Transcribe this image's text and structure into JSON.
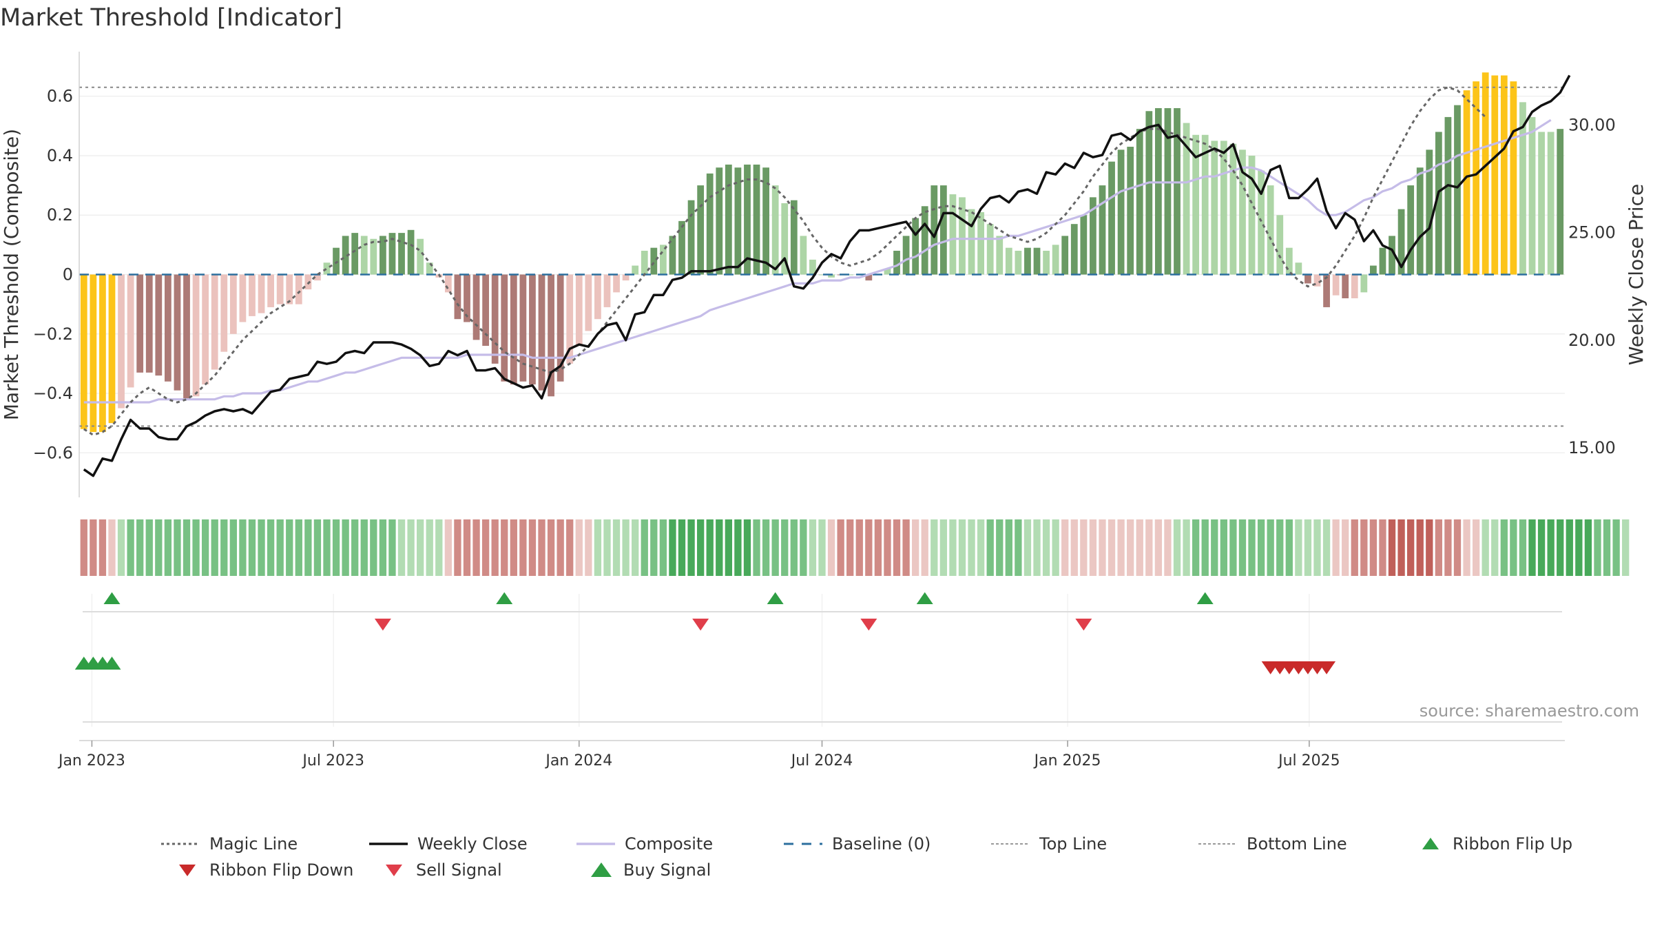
{
  "title": "Market Threshold [Indicator]",
  "source": "source: sharemaestro.com",
  "colors": {
    "bull_strong": "#6a9a64",
    "bull_weak": "#add5a6",
    "bear_strong": "#ad7a76",
    "bear_weak": "#ebc2bd",
    "extreme": "#fcc419",
    "weekly_close": "#111111",
    "composite_line": "#c5bce8",
    "baseline": "#2c6f9e",
    "magic_line": "#666666",
    "buy": "#2f9e44",
    "sell": "#e03e4a",
    "ribbon_flip_up": "#2f9e44",
    "ribbon_flip_down": "#c92a2a"
  },
  "legend": [
    {
      "label": "Magic Line",
      "icon": "dotted-line"
    },
    {
      "label": "Weekly Close",
      "icon": "solid-line"
    },
    {
      "label": "Composite",
      "icon": "composite-line"
    },
    {
      "label": "Baseline (0)",
      "icon": "dashed-line"
    },
    {
      "label": "Top Line",
      "icon": "fine-dotted-line"
    },
    {
      "label": "Bottom Line",
      "icon": "fine-dotted-line"
    },
    {
      "label": "Ribbon Flip Up",
      "icon": "triangle-up-icon"
    },
    {
      "label": "Ribbon Flip Down",
      "icon": "triangle-down-icon"
    },
    {
      "label": "Sell Signal",
      "icon": "triangle-down-icon"
    },
    {
      "label": "Buy Signal",
      "icon": "triangle-up-icon"
    }
  ],
  "chart_data": {
    "type": "bar",
    "start_week": "2022-12-26",
    "x_ticks": [
      "Jan 2023",
      "Jul 2023",
      "Jan 2024",
      "Jul 2024",
      "Jan 2025",
      "Jul 2025"
    ],
    "y_left": {
      "label": "Market Threshold (Composite)",
      "range": [
        -0.75,
        0.75
      ],
      "ticks": [
        -0.6,
        -0.4,
        -0.2,
        0,
        0.2,
        0.4,
        0.6
      ],
      "tick_labels": [
        "−0.6",
        "−0.4",
        "−0.2",
        "0",
        "0.2",
        "0.4",
        "0.6"
      ]
    },
    "y_right": {
      "label": "Weekly Close Price",
      "range": [
        12.7,
        33.4
      ],
      "ticks": [
        15,
        20,
        25,
        30
      ],
      "tick_labels": [
        "15.00",
        "20.00",
        "25.00",
        "30.00"
      ]
    },
    "top_line": 0.63,
    "bottom_line": -0.51,
    "baseline": 0,
    "grid": true,
    "legend_position": "bottom",
    "composite_bars": [
      -0.52,
      -0.53,
      -0.53,
      -0.5,
      -0.45,
      -0.38,
      -0.33,
      -0.33,
      -0.34,
      -0.36,
      -0.39,
      -0.42,
      -0.41,
      -0.37,
      -0.32,
      -0.26,
      -0.2,
      -0.16,
      -0.14,
      -0.13,
      -0.11,
      -0.1,
      -0.1,
      -0.1,
      -0.05,
      -0.02,
      0.04,
      0.09,
      0.13,
      0.14,
      0.13,
      0.12,
      0.13,
      0.14,
      0.14,
      0.15,
      0.12,
      0.04,
      -0.01,
      -0.06,
      -0.15,
      -0.16,
      -0.22,
      -0.24,
      -0.3,
      -0.36,
      -0.37,
      -0.36,
      -0.37,
      -0.39,
      -0.41,
      -0.36,
      -0.3,
      -0.24,
      -0.19,
      -0.15,
      -0.11,
      -0.06,
      -0.02,
      0.03,
      0.08,
      0.09,
      0.1,
      0.13,
      0.18,
      0.25,
      0.3,
      0.34,
      0.36,
      0.37,
      0.36,
      0.37,
      0.37,
      0.36,
      0.3,
      0.24,
      0.25,
      0.13,
      0.05,
      0.0,
      -0.01,
      0.0,
      0.0,
      0.0,
      -0.02,
      0.0,
      0.02,
      0.08,
      0.13,
      0.19,
      0.23,
      0.3,
      0.3,
      0.27,
      0.26,
      0.22,
      0.21,
      0.17,
      0.13,
      0.09,
      0.08,
      0.09,
      0.09,
      0.08,
      0.1,
      0.13,
      0.17,
      0.2,
      0.26,
      0.3,
      0.38,
      0.42,
      0.43,
      0.49,
      0.55,
      0.56,
      0.56,
      0.56,
      0.51,
      0.47,
      0.47,
      0.45,
      0.45,
      0.44,
      0.42,
      0.4,
      0.35,
      0.3,
      0.2,
      0.09,
      0.04,
      -0.03,
      -0.04,
      -0.11,
      -0.07,
      -0.08,
      -0.08,
      -0.06,
      0.03,
      0.09,
      0.13,
      0.22,
      0.3,
      0.36,
      0.42,
      0.48,
      0.53,
      0.57,
      0.62,
      0.65,
      0.68,
      0.67,
      0.67,
      0.65,
      0.58,
      0.53,
      0.48,
      0.48,
      0.49
    ],
    "bar_colors": [
      "extreme",
      "extreme",
      "extreme",
      "extreme",
      "bear_weak",
      "bear_weak",
      "bear_strong",
      "bear_strong",
      "bear_strong",
      "bear_strong",
      "bear_strong",
      "bear_strong",
      "bear_weak",
      "bear_weak",
      "bear_weak",
      "bear_weak",
      "bear_weak",
      "bear_weak",
      "bear_weak",
      "bear_weak",
      "bear_weak",
      "bear_weak",
      "bear_weak",
      "bear_weak",
      "bear_weak",
      "bear_weak",
      "bull_weak",
      "bull_strong",
      "bull_strong",
      "bull_strong",
      "bull_weak",
      "bull_weak",
      "bull_strong",
      "bull_strong",
      "bull_strong",
      "bull_strong",
      "bull_weak",
      "bull_weak",
      "bear_weak",
      "bear_weak",
      "bear_strong",
      "bear_strong",
      "bear_strong",
      "bear_strong",
      "bear_strong",
      "bear_strong",
      "bear_strong",
      "bear_strong",
      "bear_strong",
      "bear_strong",
      "bear_strong",
      "bear_strong",
      "bear_weak",
      "bear_weak",
      "bear_weak",
      "bear_weak",
      "bear_weak",
      "bear_weak",
      "bear_weak",
      "bull_weak",
      "bull_weak",
      "bull_strong",
      "bull_weak",
      "bull_strong",
      "bull_strong",
      "bull_strong",
      "bull_strong",
      "bull_strong",
      "bull_strong",
      "bull_strong",
      "bull_strong",
      "bull_strong",
      "bull_strong",
      "bull_strong",
      "bull_weak",
      "bull_weak",
      "bull_strong",
      "bull_weak",
      "bull_weak",
      "bull_weak",
      "bull_weak",
      "bear_strong",
      "bull_weak",
      "bull_weak",
      "bear_strong",
      "bull_weak",
      "bull_weak",
      "bull_strong",
      "bull_strong",
      "bull_strong",
      "bull_strong",
      "bull_strong",
      "bull_strong",
      "bull_weak",
      "bull_weak",
      "bull_weak",
      "bull_weak",
      "bull_weak",
      "bull_weak",
      "bull_weak",
      "bull_weak",
      "bull_strong",
      "bull_strong",
      "bull_weak",
      "bull_weak",
      "bull_strong",
      "bull_strong",
      "bull_strong",
      "bull_strong",
      "bull_strong",
      "bull_strong",
      "bull_strong",
      "bull_strong",
      "bull_strong",
      "bull_strong",
      "bull_strong",
      "bull_strong",
      "bull_strong",
      "bull_weak",
      "bull_weak",
      "bull_weak",
      "bull_weak",
      "bull_weak",
      "bull_weak",
      "bull_weak",
      "bull_weak",
      "bull_weak",
      "bull_weak",
      "bull_weak",
      "bull_weak",
      "bull_weak",
      "bear_strong",
      "bear_weak",
      "bear_strong",
      "bear_weak",
      "bear_strong",
      "bear_weak",
      "bull_weak",
      "bull_strong",
      "bull_strong",
      "bull_strong",
      "bull_strong",
      "bull_strong",
      "bull_strong",
      "bull_strong",
      "bull_strong",
      "bull_strong",
      "bull_strong",
      "extreme",
      "extreme",
      "extreme",
      "extreme",
      "extreme",
      "extreme",
      "bull_weak",
      "bull_weak",
      "bull_weak",
      "bull_weak",
      "bull_strong"
    ],
    "magic_line": [
      -0.52,
      -0.54,
      -0.53,
      -0.51,
      -0.47,
      -0.43,
      -0.4,
      -0.38,
      -0.4,
      -0.42,
      -0.43,
      -0.42,
      -0.4,
      -0.37,
      -0.34,
      -0.3,
      -0.26,
      -0.22,
      -0.19,
      -0.16,
      -0.13,
      -0.11,
      -0.09,
      -0.06,
      -0.03,
      0.0,
      0.02,
      0.04,
      0.06,
      0.08,
      0.1,
      0.11,
      0.11,
      0.12,
      0.11,
      0.1,
      0.08,
      0.04,
      0.0,
      -0.05,
      -0.1,
      -0.14,
      -0.17,
      -0.2,
      -0.23,
      -0.26,
      -0.28,
      -0.3,
      -0.31,
      -0.32,
      -0.33,
      -0.32,
      -0.3,
      -0.27,
      -0.24,
      -0.2,
      -0.16,
      -0.12,
      -0.08,
      -0.04,
      0.0,
      0.04,
      0.08,
      0.12,
      0.16,
      0.2,
      0.23,
      0.26,
      0.28,
      0.3,
      0.31,
      0.32,
      0.32,
      0.31,
      0.29,
      0.26,
      0.22,
      0.18,
      0.13,
      0.09,
      0.06,
      0.04,
      0.03,
      0.04,
      0.05,
      0.07,
      0.1,
      0.13,
      0.16,
      0.19,
      0.21,
      0.22,
      0.23,
      0.23,
      0.22,
      0.21,
      0.19,
      0.17,
      0.15,
      0.13,
      0.12,
      0.11,
      0.12,
      0.14,
      0.17,
      0.2,
      0.24,
      0.28,
      0.33,
      0.37,
      0.41,
      0.44,
      0.46,
      0.48,
      0.49,
      0.49,
      0.48,
      0.47,
      0.46,
      0.45,
      0.44,
      0.42,
      0.39,
      0.35,
      0.3,
      0.24,
      0.18,
      0.12,
      0.06,
      0.01,
      -0.02,
      -0.04,
      -0.03,
      -0.01,
      0.03,
      0.08,
      0.13,
      0.19,
      0.26,
      0.32,
      0.38,
      0.44,
      0.5,
      0.55,
      0.59,
      0.62,
      0.63,
      0.62,
      0.59,
      0.56,
      0.53
    ],
    "composite_line": [
      -0.43,
      -0.43,
      -0.43,
      -0.43,
      -0.43,
      -0.43,
      -0.43,
      -0.43,
      -0.42,
      -0.42,
      -0.42,
      -0.42,
      -0.42,
      -0.42,
      -0.42,
      -0.41,
      -0.41,
      -0.4,
      -0.4,
      -0.4,
      -0.39,
      -0.39,
      -0.38,
      -0.37,
      -0.36,
      -0.36,
      -0.35,
      -0.34,
      -0.33,
      -0.33,
      -0.32,
      -0.31,
      -0.3,
      -0.29,
      -0.28,
      -0.28,
      -0.28,
      -0.28,
      -0.28,
      -0.28,
      -0.28,
      -0.27,
      -0.27,
      -0.27,
      -0.27,
      -0.27,
      -0.27,
      -0.27,
      -0.28,
      -0.28,
      -0.28,
      -0.28,
      -0.28,
      -0.27,
      -0.26,
      -0.25,
      -0.24,
      -0.23,
      -0.22,
      -0.21,
      -0.2,
      -0.19,
      -0.18,
      -0.17,
      -0.16,
      -0.15,
      -0.14,
      -0.12,
      -0.11,
      -0.1,
      -0.09,
      -0.08,
      -0.07,
      -0.06,
      -0.05,
      -0.04,
      -0.03,
      -0.03,
      -0.03,
      -0.02,
      -0.02,
      -0.02,
      -0.01,
      -0.01,
      0.0,
      0.01,
      0.02,
      0.03,
      0.05,
      0.06,
      0.08,
      0.1,
      0.11,
      0.12,
      0.12,
      0.12,
      0.12,
      0.12,
      0.12,
      0.13,
      0.13,
      0.14,
      0.15,
      0.16,
      0.17,
      0.18,
      0.19,
      0.2,
      0.22,
      0.24,
      0.26,
      0.28,
      0.29,
      0.3,
      0.31,
      0.31,
      0.31,
      0.31,
      0.31,
      0.32,
      0.33,
      0.33,
      0.34,
      0.35,
      0.36,
      0.36,
      0.35,
      0.33,
      0.31,
      0.29,
      0.27,
      0.25,
      0.22,
      0.2,
      0.2,
      0.21,
      0.23,
      0.25,
      0.26,
      0.28,
      0.29,
      0.31,
      0.32,
      0.34,
      0.35,
      0.37,
      0.38,
      0.4,
      0.41,
      0.42,
      0.43,
      0.44,
      0.45,
      0.46,
      0.47,
      0.48,
      0.5,
      0.52
    ],
    "weekly_close": [
      14.0,
      13.7,
      14.5,
      14.4,
      15.4,
      16.3,
      15.9,
      15.9,
      15.5,
      15.4,
      15.4,
      16.0,
      16.2,
      16.5,
      16.7,
      16.8,
      16.7,
      16.8,
      16.6,
      17.1,
      17.6,
      17.7,
      18.2,
      18.3,
      18.4,
      19.0,
      18.9,
      19.0,
      19.4,
      19.5,
      19.4,
      19.9,
      19.9,
      19.9,
      19.8,
      19.6,
      19.3,
      18.8,
      18.9,
      19.5,
      19.3,
      19.5,
      18.6,
      18.6,
      18.7,
      18.2,
      18.0,
      17.8,
      17.9,
      17.3,
      18.5,
      18.8,
      19.6,
      19.8,
      19.7,
      20.3,
      20.7,
      20.8,
      20.0,
      21.2,
      21.3,
      22.1,
      22.1,
      22.8,
      22.9,
      23.2,
      23.2,
      23.2,
      23.3,
      23.4,
      23.4,
      23.8,
      23.7,
      23.6,
      23.3,
      23.8,
      22.5,
      22.4,
      22.9,
      23.6,
      24.0,
      23.8,
      24.6,
      25.1,
      25.1,
      25.2,
      25.3,
      25.4,
      25.5,
      24.9,
      25.4,
      24.8,
      25.9,
      25.9,
      25.6,
      25.3,
      26.1,
      26.6,
      26.7,
      26.4,
      26.9,
      27.0,
      26.8,
      27.8,
      27.7,
      28.2,
      28.0,
      28.7,
      28.5,
      28.6,
      29.5,
      29.6,
      29.3,
      29.7,
      29.9,
      30.0,
      29.4,
      29.5,
      29.0,
      28.5,
      28.7,
      28.9,
      28.7,
      29.1,
      27.8,
      27.5,
      26.8,
      27.9,
      28.1,
      26.6,
      26.6,
      27.0,
      27.5,
      26.0,
      25.2,
      25.9,
      25.6,
      24.6,
      25.1,
      24.4,
      24.2,
      23.4,
      24.2,
      24.8,
      25.2,
      26.9,
      27.2,
      27.1,
      27.6,
      27.7,
      28.1,
      28.5,
      28.9,
      29.7,
      29.9,
      30.6,
      30.9,
      31.1,
      31.5,
      32.3
    ]
  },
  "ribbon": [
    -2,
    -2,
    -2,
    -1,
    1,
    2,
    2,
    2,
    2,
    2,
    2,
    2,
    2,
    2,
    2,
    2,
    2,
    2,
    2,
    2,
    2,
    2,
    2,
    2,
    2,
    2,
    2,
    2,
    2,
    2,
    2,
    2,
    2,
    2,
    1,
    1,
    1,
    1,
    1,
    -1,
    -2,
    -2,
    -2,
    -2,
    -2,
    -2,
    -2,
    -2,
    -2,
    -2,
    -2,
    -2,
    -2,
    -1,
    -1,
    1,
    1,
    1,
    1,
    1,
    2,
    2,
    2,
    3,
    3,
    3,
    3,
    3,
    3,
    3,
    3,
    3,
    2,
    2,
    2,
    2,
    2,
    2,
    1,
    1,
    -1,
    -2,
    -2,
    -2,
    -2,
    -2,
    -2,
    -2,
    -2,
    -1,
    -1,
    1,
    1,
    1,
    1,
    1,
    1,
    2,
    2,
    2,
    2,
    1,
    1,
    1,
    1,
    -1,
    -1,
    -1,
    -1,
    -1,
    -1,
    -1,
    -1,
    -1,
    -1,
    -1,
    -1,
    1,
    1,
    2,
    2,
    2,
    2,
    2,
    2,
    2,
    2,
    2,
    2,
    2,
    1,
    1,
    1,
    1,
    -1,
    -1,
    -2,
    -2,
    -2,
    -2,
    -3,
    -3,
    -3,
    -3,
    -3,
    -2,
    -2,
    -2,
    -1,
    -1,
    1,
    1,
    2,
    2,
    2,
    3,
    3,
    3,
    3,
    3,
    3,
    3,
    2,
    2,
    2,
    1
  ],
  "signals": {
    "buy": [
      3,
      45,
      74,
      90,
      120
    ],
    "sell": [
      32,
      66,
      84,
      107
    ],
    "ribbon_flip_up": [
      0,
      1,
      2,
      3
    ],
    "ribbon_flip_down": [
      127,
      128,
      129,
      130,
      131,
      132,
      133
    ]
  }
}
